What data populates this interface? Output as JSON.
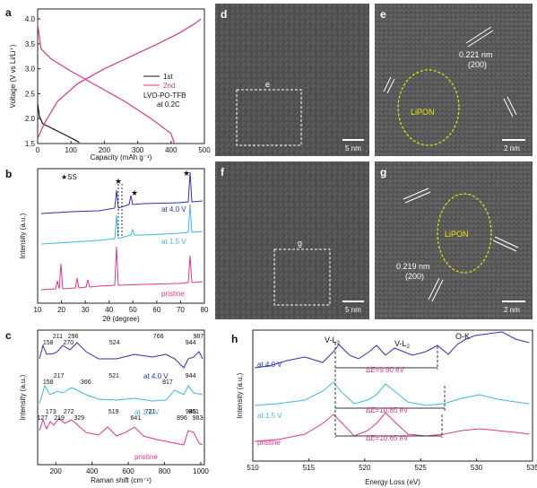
{
  "panels": {
    "a": {
      "letter": "a",
      "ylabel": "Voltage (V vs Li/Li⁺)",
      "xlabel": "Capacity (mAh g⁻¹)",
      "xticks": [
        "0",
        "100",
        "200",
        "300",
        "400",
        "500"
      ],
      "yticks": [
        "1.5",
        "2.0",
        "2.5",
        "3.0",
        "3.5",
        "4.0"
      ],
      "legend": [
        "1st",
        "2nd"
      ],
      "annotation_line1": "LVO-PO-TFB",
      "annotation_line2": "at 0.2C"
    },
    "b": {
      "letter": "b",
      "ylabel": "Intensity (a.u.)",
      "xlabel": "2θ (degree)",
      "xticks": [
        "10",
        "20",
        "30",
        "40",
        "50",
        "60",
        "70",
        "80"
      ],
      "ss_label": "★SS",
      "traces": [
        "at 4.0 V",
        "at 1.5 V",
        "pristine"
      ]
    },
    "c": {
      "letter": "c",
      "ylabel": "Intensity (a.u.)",
      "xlabel": "Raman shift (cm⁻¹)",
      "xticks": [
        "200",
        "400",
        "600",
        "800",
        "1000"
      ],
      "traces": [
        "at 4.0 V",
        "at 1.5 V",
        "pristine"
      ],
      "peaks_top": [
        "158",
        "211",
        "270",
        "296",
        "524",
        "766",
        "944",
        "987"
      ],
      "peaks_mid": [
        "158",
        "217",
        "366",
        "521",
        "817",
        "944"
      ],
      "peaks_bot": [
        "127",
        "173",
        "219",
        "272",
        "329",
        "519",
        "641",
        "721",
        "896",
        "945",
        "983",
        "961"
      ]
    },
    "d": {
      "letter": "d",
      "scale": "5 nm",
      "box": "e"
    },
    "e": {
      "letter": "e",
      "scale": "2 nm",
      "lipon": "LiPON",
      "dspacing": "0.221 nm",
      "plane": "(200)"
    },
    "f": {
      "letter": "f",
      "scale": "5 nm",
      "box": "g"
    },
    "g": {
      "letter": "g",
      "scale": "2 nm",
      "lipon": "LiPON",
      "dspacing": "0.219 nm",
      "plane": "(200)"
    },
    "h": {
      "letter": "h",
      "ylabel": "Intensity (a.u.)",
      "xlabel": "Energy Loss (eV)",
      "xticks": [
        "510",
        "515",
        "520",
        "525",
        "530",
        "535"
      ],
      "edges": [
        "V-L3",
        "V-L2",
        "O-K"
      ],
      "traces": [
        "at 4.0 V",
        "at 1.5 V",
        "pristine"
      ],
      "deltas": [
        "ΔE=9.90 eV",
        "ΔE=10.85 eV",
        "ΔE=10.65 eV"
      ]
    }
  },
  "chart_data": [
    {
      "type": "line",
      "panel": "a",
      "xlabel": "Capacity (mAh g⁻¹)",
      "ylabel": "Voltage (V vs Li/Li⁺)",
      "xlim": [
        0,
        500
      ],
      "ylim": [
        1.5,
        4.2
      ],
      "series": [
        {
          "name": "1st",
          "color": "#111111",
          "x": [
            0,
            5,
            15,
            30,
            50,
            80,
            110,
            125
          ],
          "y": [
            2.3,
            2.05,
            1.9,
            1.85,
            1.78,
            1.68,
            1.58,
            1.52
          ]
        },
        {
          "name": "2nd",
          "color": "#e0358a",
          "x": [
            0,
            20,
            60,
            120,
            200,
            280,
            360,
            420,
            470,
            490
          ],
          "y": [
            1.6,
            1.9,
            2.35,
            2.7,
            3.0,
            3.25,
            3.5,
            3.7,
            3.9,
            4.0
          ]
        },
        {
          "name": "2nd",
          "color": "#e0358a",
          "x": [
            0,
            10,
            40,
            100,
            180,
            260,
            340,
            400,
            410
          ],
          "y": [
            3.9,
            3.4,
            3.2,
            2.95,
            2.65,
            2.35,
            2.0,
            1.7,
            1.5
          ]
        }
      ]
    }
  ],
  "colors": {
    "blue": "#2633b8",
    "cyan": "#3db7e4",
    "pink": "#e0358a",
    "dashed_box": "#ffffff",
    "lipon": "#e8e800"
  }
}
